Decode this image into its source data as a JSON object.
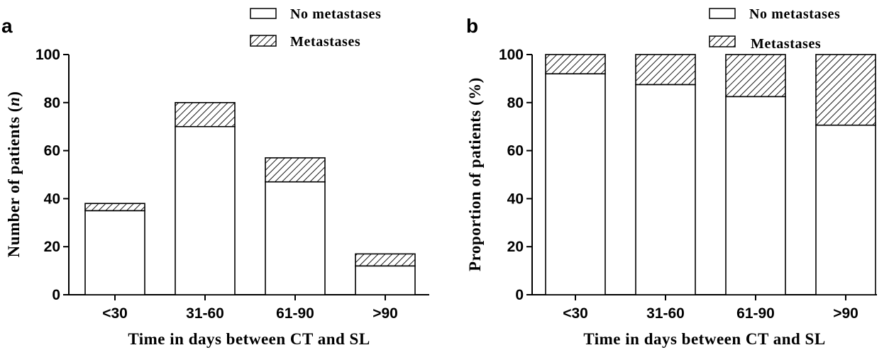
{
  "chart_data": [
    {
      "type": "bar",
      "stacked": true,
      "panel_label": "a",
      "categories": [
        "<30",
        "31-60",
        "61-90",
        ">90"
      ],
      "series": [
        {
          "name": "No metastases",
          "values": [
            35,
            70,
            47,
            12
          ],
          "fill": "white"
        },
        {
          "name": "Metastases",
          "values": [
            3,
            10,
            10,
            5
          ],
          "fill": "hatched"
        }
      ],
      "xlabel": "Time in days between CT and SL",
      "ylabel_prefix": "Number of patients (",
      "ylabel_var": "n",
      "ylabel_suffix": ")",
      "ylim": [
        0,
        100
      ],
      "yticks": [
        0,
        20,
        40,
        60,
        80,
        100
      ],
      "grid": false,
      "legend_position": "top-right"
    },
    {
      "type": "bar",
      "stacked": true,
      "panel_label": "b",
      "categories": [
        "<30",
        "31-60",
        "61-90",
        ">90"
      ],
      "series": [
        {
          "name": "No metastases",
          "values": [
            92,
            87.5,
            82.5,
            70.6
          ],
          "fill": "white"
        },
        {
          "name": "Metastases",
          "values": [
            8,
            12.5,
            17.5,
            29.4
          ],
          "fill": "hatched"
        }
      ],
      "xlabel": "Time in days between CT and SL",
      "ylabel_prefix": "Proportion of patients (%)",
      "ylabel_var": "",
      "ylabel_suffix": "",
      "ylim": [
        0,
        100
      ],
      "yticks": [
        0,
        20,
        40,
        60,
        80,
        100
      ],
      "grid": false,
      "legend_position": "top-right"
    }
  ]
}
